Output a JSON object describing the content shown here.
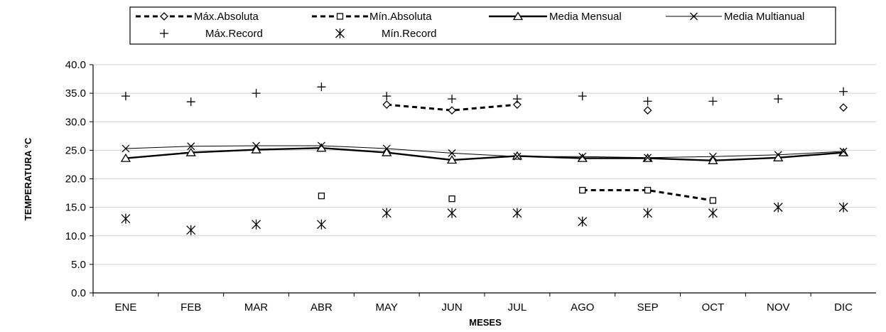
{
  "chart_data": {
    "type": "line",
    "xlabel": "MESES",
    "ylabel": "TEMPERATURA °C",
    "ylim": [
      0,
      40
    ],
    "yticks": [
      "0.0",
      "5.0",
      "10.0",
      "15.0",
      "20.0",
      "25.0",
      "30.0",
      "35.0",
      "40.0"
    ],
    "categories": [
      "ENE",
      "FEB",
      "MAR",
      "ABR",
      "MAY",
      "JUN",
      "JUL",
      "AGO",
      "SEP",
      "OCT",
      "NOV",
      "DIC"
    ],
    "grid": "horizontal",
    "legend_position": "top",
    "series": [
      {
        "name": "Máx.Absoluta",
        "style": "dashed",
        "marker": "diamond",
        "values": [
          null,
          null,
          null,
          null,
          33.0,
          32.0,
          33.0,
          null,
          32.0,
          null,
          null,
          32.5
        ]
      },
      {
        "name": "Mín.Absoluta",
        "style": "dashed",
        "marker": "square",
        "values": [
          null,
          null,
          null,
          17.0,
          null,
          16.5,
          null,
          18.0,
          18.0,
          16.2,
          null,
          null
        ]
      },
      {
        "name": "Media Mensual",
        "style": "thick",
        "marker": "triangle",
        "values": [
          23.6,
          24.6,
          25.1,
          25.4,
          24.6,
          23.3,
          24.0,
          23.6,
          23.6,
          23.2,
          23.7,
          24.6
        ]
      },
      {
        "name": "Media Multianual",
        "style": "thin",
        "marker": "x",
        "values": [
          25.3,
          25.7,
          25.8,
          25.8,
          25.3,
          24.5,
          23.9,
          23.9,
          23.7,
          23.9,
          24.2,
          24.8
        ]
      },
      {
        "name": "Máx.Record",
        "style": "none",
        "marker": "plus",
        "values": [
          34.5,
          33.5,
          35.0,
          36.1,
          34.5,
          34.0,
          34.0,
          34.5,
          33.6,
          33.6,
          34.0,
          35.3
        ]
      },
      {
        "name": "Mín.Record",
        "style": "none",
        "marker": "asterisk",
        "values": [
          13.0,
          11.0,
          12.0,
          12.0,
          14.0,
          14.0,
          14.0,
          12.5,
          14.0,
          14.0,
          15.0,
          15.0
        ]
      }
    ]
  }
}
